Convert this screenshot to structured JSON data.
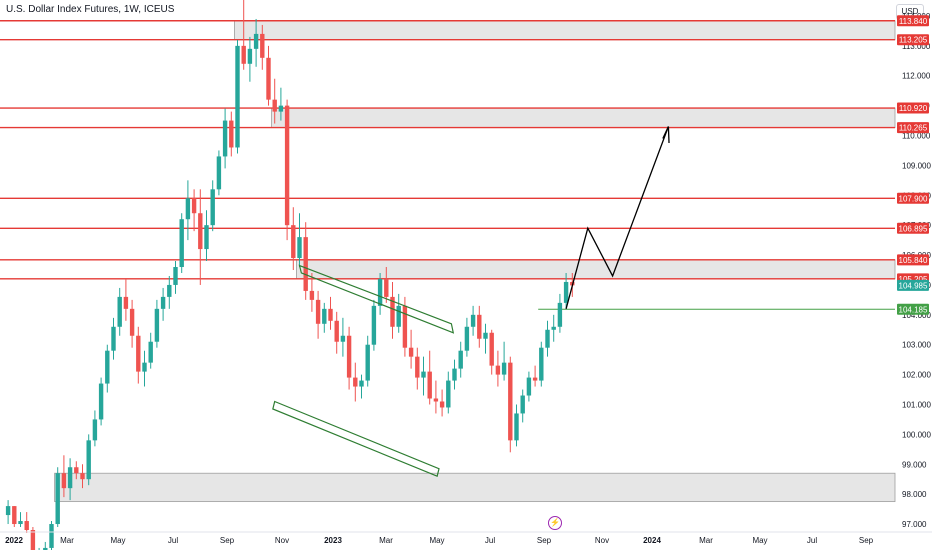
{
  "header": {
    "title": "U.S. Dollar Index Futures, 1W, ICEUS",
    "currency": "USD"
  },
  "icons": {
    "event": "lightning-icon"
  },
  "colors": {
    "up": "#26a69a",
    "down": "#ef5350",
    "level": "#e53935",
    "channel": "#2e7d32",
    "support": "#43a047",
    "zone": "#e6e6e6",
    "axis_text": "#131722"
  },
  "chart_data": {
    "type": "candlestick",
    "title": "U.S. Dollar Index Futures, 1W, ICEUS",
    "ylim": [
      96.8,
      114.2
    ],
    "y_ticks": [
      97.0,
      98.0,
      99.0,
      100.0,
      101.0,
      102.0,
      103.0,
      104.0,
      105.0,
      106.0,
      107.0,
      108.0,
      109.0,
      110.0,
      111.0,
      112.0,
      113.0,
      114.0
    ],
    "x_labels": [
      "2022",
      "Mar",
      "May",
      "Jul",
      "Sep",
      "Nov",
      "2023",
      "Mar",
      "May",
      "Jul",
      "Sep",
      "Nov",
      "2024",
      "Mar",
      "May",
      "Jul",
      "Sep"
    ],
    "price_levels": [
      {
        "label": "113.840",
        "value": 113.84,
        "color": "#e53935"
      },
      {
        "label": "113.205",
        "value": 113.205,
        "color": "#e53935"
      },
      {
        "label": "110.920",
        "value": 110.92,
        "color": "#e53935"
      },
      {
        "label": "110.265",
        "value": 110.265,
        "color": "#e53935"
      },
      {
        "label": "107.900",
        "value": 107.9,
        "color": "#e53935"
      },
      {
        "label": "106.895",
        "value": 106.895,
        "color": "#e53935"
      },
      {
        "label": "105.840",
        "value": 105.84,
        "color": "#e53935"
      },
      {
        "label": "105.205",
        "value": 105.205,
        "color": "#e53935"
      },
      {
        "label": "104.985",
        "value": 104.985,
        "color": "#26a69a"
      },
      {
        "label": "104.185",
        "value": 104.185,
        "color": "#43a047"
      }
    ],
    "zones": [
      {
        "from": 113.205,
        "to": 113.84,
        "start_week": 37
      },
      {
        "from": 110.265,
        "to": 110.92,
        "start_week": 43
      },
      {
        "from": 105.205,
        "to": 105.84,
        "start_week": 47
      },
      {
        "from": 97.75,
        "to": 98.7,
        "start_week": 8
      }
    ],
    "candles": [
      [
        97.3,
        97.8,
        97.0,
        97.6
      ],
      [
        97.6,
        97.6,
        96.9,
        97.0
      ],
      [
        97.0,
        97.4,
        96.9,
        97.1
      ],
      [
        97.1,
        97.4,
        96.7,
        96.8
      ],
      [
        96.8,
        96.9,
        95.7,
        95.8
      ],
      [
        95.8,
        96.2,
        95.5,
        96.0
      ],
      [
        96.0,
        96.4,
        95.8,
        96.2
      ],
      [
        96.2,
        97.1,
        96.0,
        97.0
      ],
      [
        97.0,
        98.9,
        96.9,
        98.7
      ],
      [
        98.7,
        99.3,
        97.9,
        98.2
      ],
      [
        98.2,
        99.2,
        97.8,
        98.9
      ],
      [
        98.9,
        99.1,
        98.5,
        98.7
      ],
      [
        98.7,
        99.0,
        98.2,
        98.5
      ],
      [
        98.5,
        100.0,
        98.3,
        99.8
      ],
      [
        99.8,
        100.8,
        99.6,
        100.5
      ],
      [
        100.5,
        101.9,
        100.3,
        101.7
      ],
      [
        101.7,
        103.0,
        101.4,
        102.8
      ],
      [
        102.8,
        103.9,
        102.5,
        103.6
      ],
      [
        103.6,
        104.9,
        103.3,
        104.6
      ],
      [
        104.6,
        105.2,
        103.8,
        104.2
      ],
      [
        104.2,
        104.5,
        102.9,
        103.3
      ],
      [
        103.3,
        103.6,
        101.7,
        102.1
      ],
      [
        102.1,
        102.8,
        101.6,
        102.4
      ],
      [
        102.4,
        103.4,
        102.2,
        103.1
      ],
      [
        103.1,
        104.5,
        102.9,
        104.2
      ],
      [
        104.2,
        104.9,
        103.8,
        104.6
      ],
      [
        104.6,
        105.3,
        104.2,
        105.0
      ],
      [
        105.0,
        105.8,
        104.7,
        105.6
      ],
      [
        105.6,
        107.4,
        105.4,
        107.2
      ],
      [
        107.2,
        108.5,
        106.5,
        107.9
      ],
      [
        107.9,
        108.2,
        106.8,
        107.4
      ],
      [
        107.4,
        108.2,
        105.0,
        106.2
      ],
      [
        106.2,
        107.5,
        105.8,
        107.0
      ],
      [
        107.0,
        108.5,
        106.8,
        108.2
      ],
      [
        108.2,
        109.5,
        108.0,
        109.3
      ],
      [
        109.3,
        110.9,
        108.9,
        110.5
      ],
      [
        110.5,
        110.8,
        109.3,
        109.6
      ],
      [
        109.6,
        113.2,
        109.4,
        113.0
      ],
      [
        113.0,
        114.6,
        112.2,
        112.4
      ],
      [
        112.4,
        113.3,
        111.8,
        112.9
      ],
      [
        112.9,
        113.9,
        112.3,
        113.4
      ],
      [
        113.4,
        113.7,
        112.2,
        112.6
      ],
      [
        112.6,
        113.0,
        111.0,
        111.2
      ],
      [
        111.2,
        111.9,
        110.4,
        110.8
      ],
      [
        110.8,
        111.6,
        110.5,
        111.0
      ],
      [
        111.0,
        111.2,
        106.5,
        107.0
      ],
      [
        107.0,
        107.6,
        105.5,
        105.9
      ],
      [
        105.9,
        107.4,
        105.6,
        106.6
      ],
      [
        106.6,
        107.1,
        104.5,
        104.8
      ],
      [
        104.8,
        105.4,
        104.1,
        104.5
      ],
      [
        104.5,
        104.8,
        103.2,
        103.7
      ],
      [
        103.7,
        104.4,
        103.4,
        104.2
      ],
      [
        104.2,
        104.6,
        103.5,
        103.8
      ],
      [
        103.8,
        104.1,
        102.7,
        103.1
      ],
      [
        103.1,
        103.9,
        102.6,
        103.3
      ],
      [
        103.3,
        103.6,
        101.5,
        101.9
      ],
      [
        101.9,
        102.4,
        101.1,
        101.6
      ],
      [
        101.6,
        102.0,
        101.2,
        101.8
      ],
      [
        101.8,
        103.3,
        101.6,
        103.0
      ],
      [
        103.0,
        104.5,
        102.8,
        104.3
      ],
      [
        104.3,
        105.4,
        104.0,
        105.2
      ],
      [
        105.2,
        105.6,
        104.4,
        104.6
      ],
      [
        104.6,
        105.1,
        103.2,
        103.6
      ],
      [
        103.6,
        104.7,
        103.4,
        104.3
      ],
      [
        104.3,
        104.6,
        102.6,
        102.9
      ],
      [
        102.9,
        103.5,
        102.2,
        102.6
      ],
      [
        102.6,
        102.9,
        101.5,
        101.9
      ],
      [
        101.9,
        102.6,
        101.3,
        102.1
      ],
      [
        102.1,
        102.8,
        101.0,
        101.2
      ],
      [
        101.2,
        101.8,
        100.7,
        101.1
      ],
      [
        101.1,
        101.5,
        100.6,
        100.9
      ],
      [
        100.9,
        102.1,
        100.7,
        101.8
      ],
      [
        101.8,
        102.5,
        101.5,
        102.2
      ],
      [
        102.2,
        103.1,
        101.9,
        102.8
      ],
      [
        102.8,
        103.9,
        102.6,
        103.6
      ],
      [
        103.6,
        104.3,
        103.3,
        104.0
      ],
      [
        104.0,
        104.3,
        102.9,
        103.2
      ],
      [
        103.2,
        103.7,
        102.7,
        103.4
      ],
      [
        103.4,
        103.5,
        102.0,
        102.3
      ],
      [
        102.3,
        102.8,
        101.6,
        102.0
      ],
      [
        102.0,
        103.1,
        101.8,
        102.4
      ],
      [
        102.4,
        102.6,
        99.4,
        99.8
      ],
      [
        99.8,
        101.0,
        99.6,
        100.7
      ],
      [
        100.7,
        101.5,
        100.4,
        101.3
      ],
      [
        101.3,
        102.1,
        101.1,
        101.9
      ],
      [
        101.9,
        102.3,
        101.6,
        101.8
      ],
      [
        101.8,
        103.1,
        101.6,
        102.9
      ],
      [
        102.9,
        103.8,
        102.6,
        103.5
      ],
      [
        103.5,
        104.0,
        103.1,
        103.6
      ],
      [
        103.6,
        104.7,
        103.4,
        104.4
      ],
      [
        104.4,
        105.4,
        104.2,
        105.1
      ],
      [
        105.1,
        105.4,
        104.6,
        104.985
      ]
    ],
    "annotations": {
      "upper_channel": [
        [
          47.5,
          105.65
        ],
        [
          72,
          103.7
        ],
        [
          72.3,
          103.4
        ],
        [
          47.8,
          105.4
        ]
      ],
      "lower_channel": [
        [
          43.5,
          101.1
        ],
        [
          70,
          98.85
        ],
        [
          69.7,
          98.6
        ],
        [
          43.2,
          100.85
        ]
      ],
      "projection_path": [
        [
          90.5,
          104.2
        ],
        [
          94,
          106.9
        ],
        [
          98,
          105.3
        ],
        [
          107,
          110.3
        ]
      ],
      "projection_arrowhead": [
        [
          106.1,
          109.9
        ],
        [
          107,
          110.3
        ],
        [
          107.1,
          109.75
        ]
      ],
      "support_start_week": 86
    }
  }
}
